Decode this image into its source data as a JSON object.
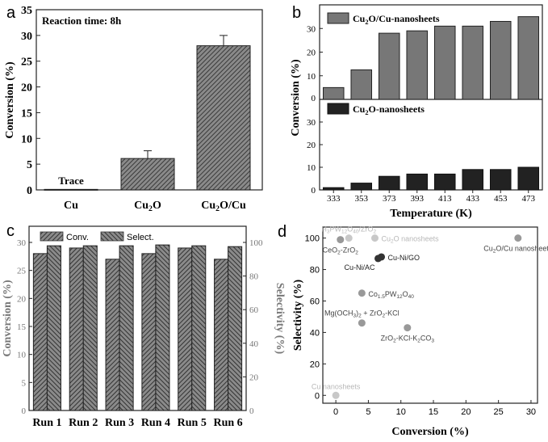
{
  "colors": {
    "hatch": "#555555",
    "dark_bar": "#222222",
    "gray_point": "#999999",
    "light_point": "#c8c8c8",
    "dark_point": "#333333"
  },
  "chart_data": [
    {
      "panel": "a",
      "type": "bar",
      "title": "Reaction time: 8h",
      "ylabel": "Conversion (%)",
      "xlabel": "",
      "categories": [
        "Cu",
        "Cu2O",
        "Cu2O/Cu"
      ],
      "category_labels": [
        {
          "base": "Cu",
          "sub": "",
          "rest": ""
        },
        {
          "base": "Cu",
          "sub": "2",
          "rest": "O"
        },
        {
          "base": "Cu",
          "sub": "2",
          "rest": "O/Cu"
        }
      ],
      "values": [
        0.1,
        6.1,
        28.0
      ],
      "errors": [
        0,
        1.5,
        2.0
      ],
      "annotations": [
        "Trace"
      ],
      "ylim": [
        0,
        35
      ],
      "yticks": [
        0,
        5,
        10,
        15,
        20,
        25,
        30,
        35
      ]
    },
    {
      "panel": "b",
      "type": "bar",
      "ylabel": "Conversion (%)",
      "xlabel": "Temperature (K)",
      "categories": [
        "333",
        "353",
        "373",
        "393",
        "413",
        "433",
        "453",
        "473"
      ],
      "series": [
        {
          "name": "Cu2O/Cu-nanosheets",
          "legend": {
            "base": "Cu",
            "sub": "2",
            "rest": "O/Cu-nanosheets"
          },
          "values": [
            5,
            12.5,
            28,
            29,
            31,
            31,
            33,
            35
          ]
        },
        {
          "name": "Cu2O-nanosheets",
          "legend": {
            "base": "Cu",
            "sub": "2",
            "rest": "O-nanosheets"
          },
          "values": [
            1,
            3,
            6,
            7,
            7,
            9,
            9,
            10
          ]
        }
      ],
      "ylim": [
        0,
        40
      ],
      "yticks_top": [
        0,
        10,
        20,
        30
      ],
      "yticks_bottom": [
        0,
        10,
        20,
        30
      ]
    },
    {
      "panel": "c",
      "type": "bar",
      "ylabel": "Conversion (%)",
      "y2label": "Selectivity (%)",
      "categories": [
        "Run 1",
        "Run 2",
        "Run 3",
        "Run 4",
        "Run 5",
        "Run 6"
      ],
      "series": [
        {
          "name": "Conv.",
          "axis": "left",
          "values": [
            28,
            29,
            27,
            28,
            29,
            27
          ]
        },
        {
          "name": "Select.",
          "axis": "right",
          "values": [
            98,
            98,
            98,
            98.5,
            98,
            97.5
          ]
        }
      ],
      "ylim": [
        0,
        30
      ],
      "y2lim": [
        0,
        100
      ],
      "yticks": [
        0,
        5,
        10,
        15,
        20,
        25,
        30
      ],
      "y2ticks": [
        0,
        20,
        40,
        60,
        80,
        100
      ]
    },
    {
      "panel": "d",
      "type": "scatter",
      "xlabel": "Conversion (%)",
      "ylabel": "Selectivity (%)",
      "xlim": [
        -2,
        31
      ],
      "ylim": [
        -5,
        107
      ],
      "xticks": [
        0,
        5,
        10,
        15,
        20,
        25,
        30
      ],
      "yticks": [
        0,
        20,
        40,
        60,
        80,
        100
      ],
      "points": [
        {
          "label": "H3PW12O40/ZrO2",
          "x": 2,
          "y": 100,
          "tone": "light",
          "anchor": "above"
        },
        {
          "label": "Cu2O nanosheets",
          "x": 6,
          "y": 100,
          "tone": "light",
          "anchor": "right"
        },
        {
          "label": "CeO2-ZrO2",
          "x": 0.7,
          "y": 99,
          "tone": "gray",
          "anchor": "below"
        },
        {
          "label": "Cu2O/Cu nanosheets",
          "x": 28,
          "y": 100,
          "tone": "gray",
          "anchor": "below"
        },
        {
          "label": "Cu-Ni/GO",
          "x": 7,
          "y": 88,
          "tone": "dark",
          "anchor": "right"
        },
        {
          "label": "Cu-Ni/AC",
          "x": 6.5,
          "y": 87,
          "tone": "dark",
          "anchor": "belowleft"
        },
        {
          "label": "Co1.5PW12O40",
          "x": 4,
          "y": 65,
          "tone": "gray",
          "anchor": "right"
        },
        {
          "label": "Mg(OCH3)2 + ZrO2-KCl",
          "x": 4,
          "y": 46,
          "tone": "gray",
          "anchor": "aboveleft"
        },
        {
          "label": "ZrO2-KCl-K2CO3",
          "x": 11,
          "y": 43,
          "tone": "gray",
          "anchor": "below"
        },
        {
          "label": "Cu nanosheets",
          "x": 0,
          "y": 0,
          "tone": "light",
          "anchor": "above"
        }
      ]
    }
  ],
  "panels": {
    "a": {
      "letter": "a",
      "title": "Reaction time: 8h",
      "ylabel": "Conversion (%)",
      "annotation": "Trace"
    },
    "b": {
      "letter": "b",
      "ylabel": "Conversion (%)",
      "xlabel": "Temperature (K)"
    },
    "c": {
      "letter": "c",
      "ylabel": "Conversion (%)",
      "y2label": "Selectivity (%)",
      "legend_conv": "Conv.",
      "legend_select": "Select."
    },
    "d": {
      "letter": "d",
      "xlabel": "Conversion (%)",
      "ylabel": "Selectivity (%)"
    }
  }
}
